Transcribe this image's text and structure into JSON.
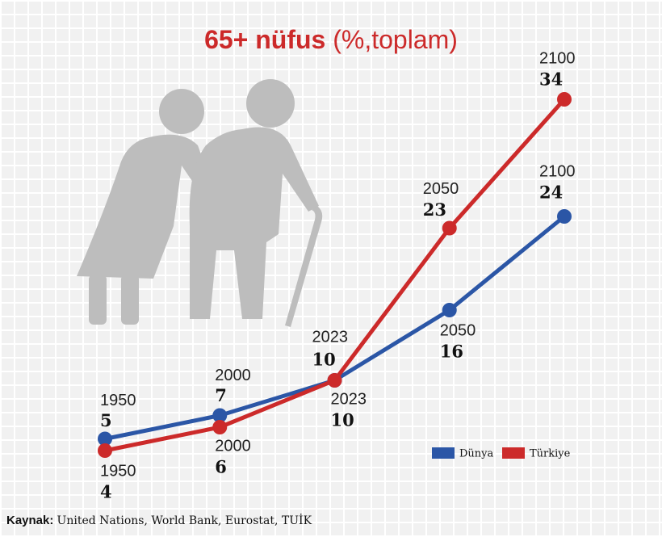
{
  "chart_data": {
    "type": "line",
    "title": "65+ nüfus",
    "title_unit": "(%,toplam)",
    "categories": [
      "1950",
      "2000",
      "2023",
      "2050",
      "2100"
    ],
    "series": [
      {
        "name": "Dünya",
        "color": "#2b56a6",
        "values": [
          5,
          7,
          10,
          16,
          24
        ]
      },
      {
        "name": "Türkiye",
        "color": "#cc2a2a",
        "values": [
          4,
          6,
          10,
          23,
          34
        ]
      }
    ],
    "ylim": [
      0,
      36
    ],
    "source_label": "Kaynak:",
    "source": "United Nations, World Bank, Eurostat, TUİK"
  }
}
